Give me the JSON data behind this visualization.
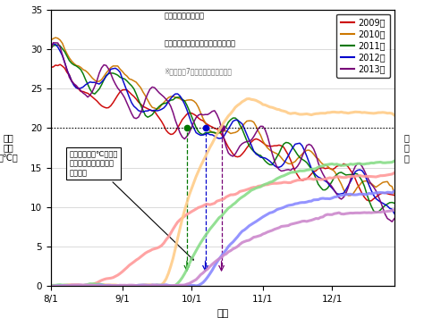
{
  "years": [
    "2009",
    "2010",
    "2011",
    "2012",
    "2013"
  ],
  "colors_temp": [
    "#cc0000",
    "#cc7700",
    "#007700",
    "#0000cc",
    "#770077"
  ],
  "colors_sales": [
    "#ff9999",
    "#ffcc88",
    "#88dd88",
    "#8888ff",
    "#cc88cc"
  ],
  "xlabel": "日付",
  "note_line1": "濃い細線：平均気温",
  "note_line2": "薄い太線：販売数（ロングブーツ）",
  "note_line3": "※データは7日移動平均している。",
  "annotation_text": "平均気温２０℃付近で\n販売数が大きく伸びる\n年が多い",
  "ylabel_left": "平均\n気温\n（℃）",
  "ylabel_right": "販\n売\n数",
  "background": "#ffffff",
  "ylim": [
    0,
    35
  ],
  "yticks": [
    0,
    5,
    10,
    15,
    20,
    25,
    30,
    35
  ],
  "n_days": 150,
  "oct1_day": 61,
  "cross_days": [
    59,
    67,
    74
  ],
  "cross_year_colors": [
    "#007700",
    "#0000cc",
    "#770077"
  ]
}
